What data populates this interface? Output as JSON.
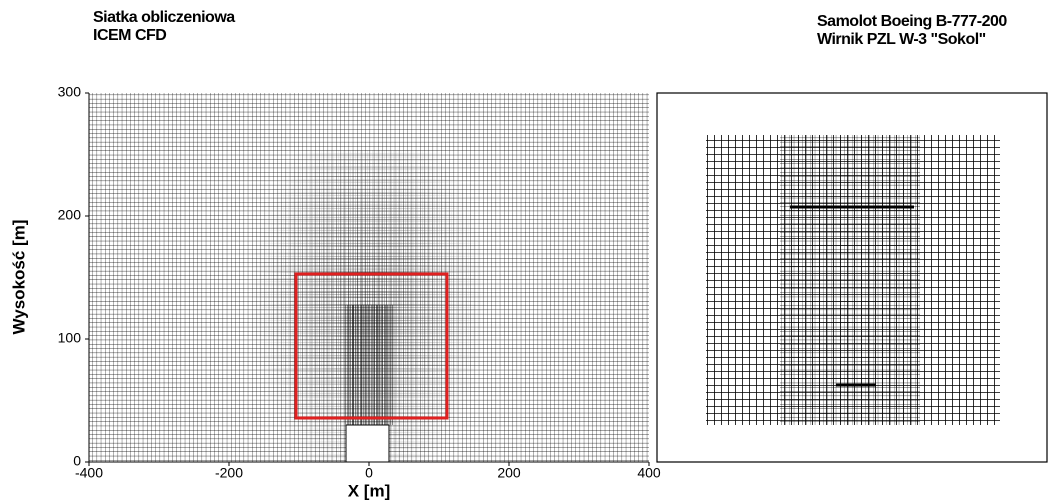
{
  "chart_data": {
    "type": "mesh",
    "title": [
      "Siatka obliczeniowa",
      "ICEM CFD"
    ],
    "subtitle": [
      "Samolot Boeing B-777-200",
      "Wirnik PZL W-3 \"Sokol\""
    ],
    "xlabel": "X [m]",
    "ylabel": "Wysokość [m]",
    "xlim": [
      -400,
      400
    ],
    "ylim": [
      0,
      300
    ],
    "xticks": [
      -400,
      -200,
      0,
      200,
      400
    ],
    "yticks": [
      0,
      100,
      200,
      300
    ]
  }
}
